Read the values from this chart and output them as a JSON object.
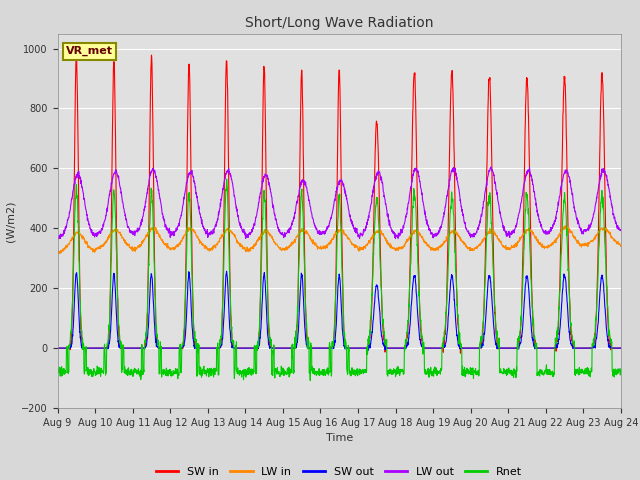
{
  "title": "Short/Long Wave Radiation",
  "ylabel": "(W/m2)",
  "xlabel": "Time",
  "ylim": [
    -200,
    1050
  ],
  "yticks": [
    -200,
    0,
    200,
    400,
    600,
    800,
    1000
  ],
  "xtick_labels": [
    "Aug 9",
    "Aug 10",
    "Aug 11",
    "Aug 12",
    "Aug 13",
    "Aug 14",
    "Aug 15",
    "Aug 16",
    "Aug 17",
    "Aug 18",
    "Aug 19",
    "Aug 20",
    "Aug 21",
    "Aug 22",
    "Aug 23",
    "Aug 24"
  ],
  "legend_labels": [
    "SW in",
    "LW in",
    "SW out",
    "LW out",
    "Rnet"
  ],
  "legend_colors": [
    "#ff0000",
    "#ff8800",
    "#0000ff",
    "#aa00ff",
    "#00cc00"
  ],
  "annotation_text": "VR_met",
  "annotation_box_color": "#ffff99",
  "annotation_box_edge": "#888800",
  "background_color": "#e0e0e0",
  "fig_facecolor": "#d8d8d8",
  "grid_color": "#ffffff",
  "n_days": 15,
  "pts_per_day": 144,
  "sw_in_peaks": [
    980,
    960,
    970,
    950,
    970,
    940,
    920,
    930,
    760,
    920,
    920,
    910,
    900,
    905,
    915
  ],
  "sw_in_widths": [
    1.8,
    1.8,
    1.8,
    1.8,
    1.8,
    1.8,
    1.8,
    1.8,
    2.5,
    2.5,
    2.5,
    2.5,
    2.5,
    2.5,
    2.5
  ],
  "lw_in_base": [
    320,
    330,
    330,
    330,
    328,
    325,
    330,
    333,
    328,
    328,
    328,
    328,
    332,
    338,
    343
  ],
  "lw_in_day_bump": [
    65,
    65,
    68,
    68,
    68,
    65,
    63,
    60,
    62,
    62,
    62,
    62,
    63,
    65,
    57
  ],
  "sw_out_peaks": [
    250,
    250,
    248,
    248,
    250,
    248,
    246,
    243,
    210,
    245,
    240,
    243,
    241,
    243,
    243
  ],
  "sw_out_widths": [
    1.8,
    1.8,
    1.8,
    1.8,
    1.8,
    1.8,
    1.8,
    1.8,
    2.5,
    2.5,
    2.5,
    2.5,
    2.5,
    2.5,
    2.5
  ],
  "lw_out_base": [
    370,
    378,
    382,
    378,
    378,
    373,
    378,
    382,
    373,
    373,
    373,
    373,
    378,
    383,
    388
  ],
  "lw_out_day_bump": [
    210,
    210,
    215,
    210,
    215,
    205,
    180,
    178,
    215,
    225,
    225,
    225,
    215,
    210,
    205
  ],
  "rnet_night": -80,
  "rnet_peaks": [
    540,
    530,
    530,
    520,
    545,
    525,
    520,
    510,
    505,
    520,
    510,
    515,
    500,
    505,
    510
  ],
  "rnet_widths": [
    2.2,
    2.2,
    2.2,
    2.2,
    2.2,
    2.2,
    2.2,
    2.2,
    3.0,
    3.0,
    3.0,
    3.0,
    3.0,
    3.0,
    3.0
  ]
}
